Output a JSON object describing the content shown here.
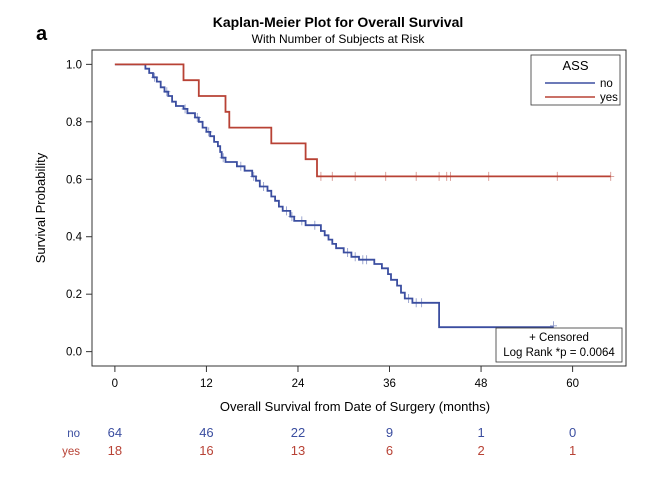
{
  "panel_label": "a",
  "chart_data": {
    "type": "line",
    "subtype": "kaplan-meier",
    "title": "Kaplan-Meier Plot for Overall Survival",
    "subtitle": "With Number of Subjects at Risk",
    "xlabel": "Overall Survival from Date of Surgery (months)",
    "ylabel": "Survival Probability",
    "xlim": [
      -3,
      67
    ],
    "ylim": [
      -0.05,
      1.05
    ],
    "xticks": [
      0,
      12,
      24,
      36,
      48,
      60
    ],
    "xtick_labels": [
      "0",
      "12",
      "24",
      "36",
      "48",
      "60"
    ],
    "yticks": [
      0.0,
      0.2,
      0.4,
      0.6,
      0.8,
      1.0
    ],
    "ytick_labels": [
      "0.0",
      "0.2",
      "0.4",
      "0.6",
      "0.8",
      "1.0"
    ],
    "grid": false,
    "legend": {
      "title": "ASS",
      "placement": "top-right"
    },
    "annotation": {
      "line1": "+ Censored",
      "line2": "Log Rank *p = 0.0064",
      "placement": "bottom-right"
    },
    "series": [
      {
        "name": "no",
        "color": "#3b4ea0",
        "steps": [
          [
            0,
            1.0
          ],
          [
            4,
            0.985
          ],
          [
            4.5,
            0.97
          ],
          [
            5,
            0.955
          ],
          [
            5.5,
            0.94
          ],
          [
            6,
            0.92
          ],
          [
            6.5,
            0.905
          ],
          [
            7,
            0.89
          ],
          [
            7.5,
            0.87
          ],
          [
            8,
            0.855
          ],
          [
            9,
            0.845
          ],
          [
            9.5,
            0.83
          ],
          [
            10.5,
            0.815
          ],
          [
            11,
            0.8
          ],
          [
            11.5,
            0.78
          ],
          [
            12,
            0.765
          ],
          [
            12.5,
            0.75
          ],
          [
            13,
            0.73
          ],
          [
            13.5,
            0.715
          ],
          [
            13.8,
            0.695
          ],
          [
            14,
            0.675
          ],
          [
            14.5,
            0.66
          ],
          [
            16,
            0.645
          ],
          [
            17,
            0.63
          ],
          [
            18,
            0.61
          ],
          [
            18.5,
            0.595
          ],
          [
            19,
            0.575
          ],
          [
            20,
            0.56
          ],
          [
            20.5,
            0.54
          ],
          [
            21,
            0.525
          ],
          [
            21.5,
            0.505
          ],
          [
            22,
            0.49
          ],
          [
            23,
            0.47
          ],
          [
            23.5,
            0.455
          ],
          [
            25,
            0.44
          ],
          [
            27,
            0.42
          ],
          [
            27.5,
            0.405
          ],
          [
            28,
            0.39
          ],
          [
            28.5,
            0.375
          ],
          [
            29,
            0.36
          ],
          [
            30,
            0.345
          ],
          [
            31,
            0.33
          ],
          [
            32,
            0.32
          ],
          [
            34,
            0.305
          ],
          [
            35,
            0.29
          ],
          [
            35.8,
            0.27
          ],
          [
            36.2,
            0.25
          ],
          [
            37,
            0.23
          ],
          [
            37.5,
            0.205
          ],
          [
            38,
            0.185
          ],
          [
            39,
            0.17
          ],
          [
            42.5,
            0.085
          ],
          [
            57.5,
            0.085
          ]
        ],
        "censored": [
          [
            5.2,
            0.955
          ],
          [
            6.8,
            0.905
          ],
          [
            9.2,
            0.845
          ],
          [
            10.8,
            0.815
          ],
          [
            12.3,
            0.765
          ],
          [
            14.2,
            0.675
          ],
          [
            16.5,
            0.645
          ],
          [
            18.2,
            0.61
          ],
          [
            19.5,
            0.575
          ],
          [
            22.5,
            0.49
          ],
          [
            23.2,
            0.47
          ],
          [
            24.5,
            0.455
          ],
          [
            26.2,
            0.44
          ],
          [
            30.5,
            0.345
          ],
          [
            31.5,
            0.33
          ],
          [
            32.5,
            0.32
          ],
          [
            33,
            0.32
          ],
          [
            38.5,
            0.185
          ],
          [
            39.5,
            0.17
          ],
          [
            40.2,
            0.17
          ],
          [
            57.5,
            0.09
          ]
        ]
      },
      {
        "name": "yes",
        "color": "#b84235",
        "steps": [
          [
            0,
            1.0
          ],
          [
            9,
            0.945
          ],
          [
            11,
            0.89
          ],
          [
            14.5,
            0.835
          ],
          [
            15,
            0.78
          ],
          [
            20.5,
            0.725
          ],
          [
            25,
            0.67
          ],
          [
            26.5,
            0.61
          ],
          [
            65,
            0.61
          ]
        ],
        "censored": [
          [
            27,
            0.61
          ],
          [
            28.5,
            0.61
          ],
          [
            31.5,
            0.61
          ],
          [
            35.5,
            0.61
          ],
          [
            39.5,
            0.61
          ],
          [
            42.5,
            0.61
          ],
          [
            43.5,
            0.61
          ],
          [
            44,
            0.61
          ],
          [
            49,
            0.61
          ],
          [
            58,
            0.61
          ],
          [
            65,
            0.61
          ]
        ]
      }
    ],
    "risk_table": {
      "times": [
        0,
        12,
        24,
        36,
        48,
        60
      ],
      "rows": [
        {
          "label": "no",
          "color": "#3b4ea0",
          "counts": [
            "64",
            "46",
            "22",
            "9",
            "1",
            "0"
          ]
        },
        {
          "label": "yes",
          "color": "#b84235",
          "counts": [
            "18",
            "16",
            "13",
            "6",
            "2",
            "1"
          ]
        }
      ]
    }
  }
}
